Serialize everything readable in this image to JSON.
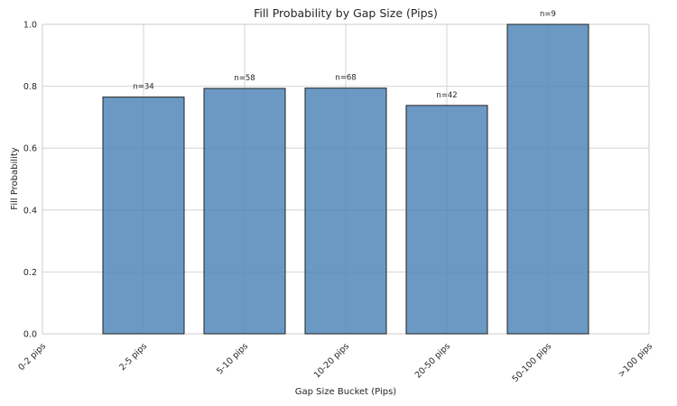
{
  "chart_data": {
    "type": "bar",
    "title": "Fill Probability by Gap Size (Pips)",
    "xlabel": "Gap Size Bucket (Pips)",
    "ylabel": "Fill Probability",
    "categories": [
      "0-2 pips",
      "2-5 pips",
      "5-10 pips",
      "10-20 pips",
      "20-50 pips",
      "50-100 pips",
      ">100 pips"
    ],
    "values": [
      null,
      0.765,
      0.793,
      0.794,
      0.738,
      1.0,
      null
    ],
    "bar_labels": [
      "",
      "n=34",
      "n=58",
      "n=68",
      "n=42",
      "n=9",
      ""
    ],
    "ylim": [
      0,
      1.0
    ],
    "yticks": [
      "0.0",
      "0.2",
      "0.4",
      "0.6",
      "0.8",
      "1.0"
    ],
    "grid": true,
    "colors": {
      "bar": "#4a83b6",
      "edge": "#222222",
      "grid": "#cccccc",
      "background": "#ffffff"
    }
  }
}
